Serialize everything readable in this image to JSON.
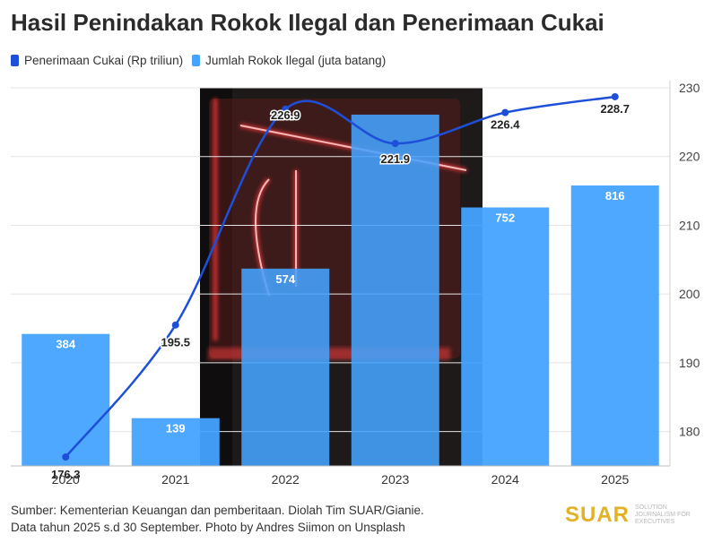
{
  "title": "Hasil Penindakan Rokok Ilegal dan Penerimaan Cukai",
  "legend": [
    {
      "label": "Penerimaan Cukai (Rp triliun)",
      "color": "#1d4fd8"
    },
    {
      "label": "Jumlah Rokok Ilegal (juta batang)",
      "color": "#46a3ff"
    }
  ],
  "source": {
    "line1": "Sumber: Kementerian Keuangan dan pemberitaan. Diolah Tim SUAR/Gianie.",
    "line2": "Data tahun 2025 s.d 30 September. Photo by Andres Siimon on Unsplash"
  },
  "logo": {
    "word": "SUAR",
    "tagline": "SOLUTION JOURNALISM FOR EXECUTIVES"
  },
  "chart_data": {
    "type": "bar",
    "categories": [
      "2020",
      "2021",
      "2022",
      "2023",
      "2024",
      "2025"
    ],
    "series": [
      {
        "name": "Jumlah Rokok Ilegal (juta batang)",
        "type": "bar",
        "values": [
          384,
          139,
          574,
          1022,
          752,
          816
        ],
        "labels": [
          "384",
          "139",
          "574",
          "",
          "752",
          "816"
        ],
        "color": "#46a3ff"
      },
      {
        "name": "Penerimaan Cukai (Rp triliun)",
        "type": "line",
        "axis": "right",
        "values": [
          176.3,
          195.5,
          226.9,
          221.9,
          226.4,
          228.7
        ],
        "labels": [
          "176.3",
          "195.5",
          "226.9",
          "221.9",
          "226.4",
          "228.7"
        ],
        "color": "#1d4fd8"
      }
    ],
    "right_axis": {
      "ticks": [
        "180",
        "190",
        "200",
        "210",
        "220",
        "230"
      ],
      "range": [
        175,
        230
      ]
    },
    "grid": true,
    "legend_position": "top-left"
  }
}
